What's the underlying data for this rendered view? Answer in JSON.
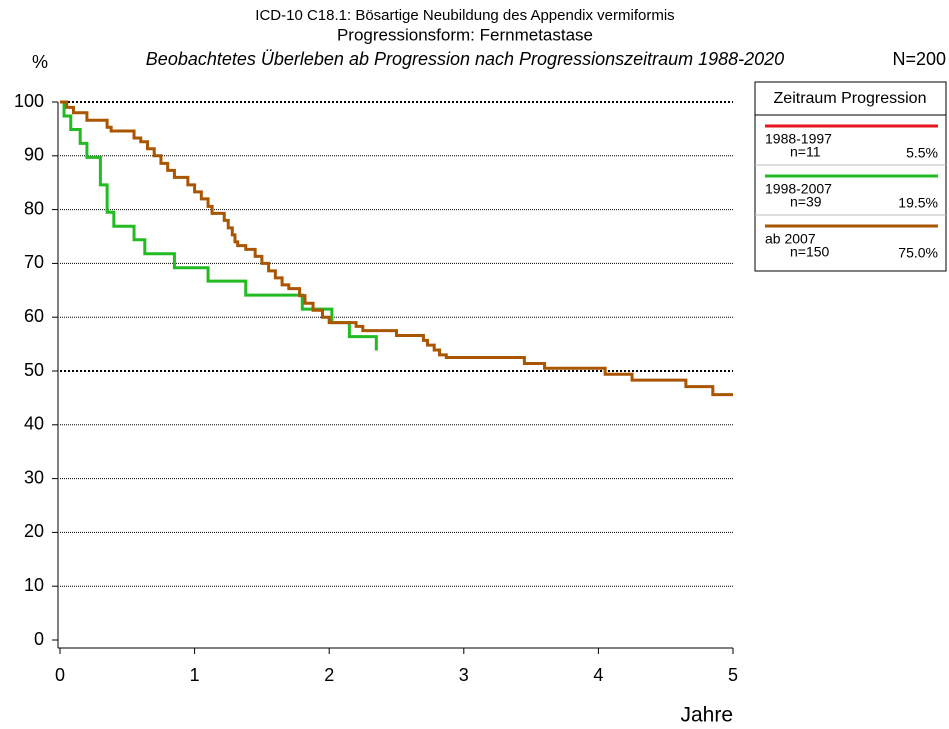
{
  "chart_data": {
    "type": "step-line",
    "title": "ICD-10 C18.1: Bösartige Neubildung des Appendix vermiformis",
    "subtitle": "Progressionsform: Fernmetastase",
    "description": "Beobachtetes Überleben ab Progression nach Progressionszeitraum 1988-2020",
    "total_label": "N=200",
    "y_label": "%",
    "x_label": "Jahre",
    "legend_title": "Zeitraum Progression",
    "xlim": [
      0,
      5
    ],
    "xticks": [
      0,
      1,
      2,
      3,
      4,
      5
    ],
    "ylim": [
      0,
      100
    ],
    "yticks": [
      0,
      10,
      20,
      30,
      40,
      50,
      60,
      70,
      80,
      90,
      100
    ],
    "grid": true,
    "bold_gridlines": [
      50,
      100
    ],
    "series": [
      {
        "name": "1988-1997",
        "color": "#e8141b",
        "n_label": "n=11",
        "share_label": "5.5%",
        "x": [],
        "values": []
      },
      {
        "name": "1998-2007",
        "color": "#22bb22",
        "n_label": "n=39",
        "share_label": "19.5%",
        "x": [
          0,
          0.03,
          0.08,
          0.15,
          0.2,
          0.3,
          0.35,
          0.4,
          0.55,
          0.63,
          0.85,
          1.1,
          1.38,
          1.8,
          2.02,
          2.15,
          2.35
        ],
        "values": [
          100,
          97.4,
          94.9,
          92.3,
          89.7,
          84.6,
          79.5,
          76.9,
          74.4,
          71.8,
          69.2,
          66.7,
          64.1,
          61.5,
          59.0,
          56.4,
          53.8
        ]
      },
      {
        "name": "ab 2007",
        "color": "#aa5500",
        "n_label": "n=150",
        "share_label": "75.0%",
        "x": [
          0,
          0.05,
          0.1,
          0.2,
          0.35,
          0.38,
          0.55,
          0.6,
          0.65,
          0.7,
          0.75,
          0.8,
          0.85,
          0.95,
          1.0,
          1.05,
          1.1,
          1.13,
          1.22,
          1.25,
          1.28,
          1.3,
          1.32,
          1.38,
          1.45,
          1.5,
          1.55,
          1.6,
          1.65,
          1.7,
          1.78,
          1.82,
          1.88,
          1.95,
          2.0,
          2.2,
          2.25,
          2.5,
          2.7,
          2.73,
          2.78,
          2.82,
          2.87,
          3.45,
          3.6,
          4.05,
          4.25,
          4.65,
          4.85,
          5.0
        ],
        "values": [
          100,
          99,
          98,
          96.6,
          95.3,
          94.6,
          93.3,
          92.6,
          91.3,
          90,
          88.6,
          87.3,
          86,
          84.6,
          83.3,
          82,
          80.6,
          79.3,
          78,
          76.6,
          75.3,
          74,
          73.3,
          72.6,
          71.3,
          70,
          68.6,
          67.3,
          66,
          65.3,
          64,
          62.6,
          61.3,
          60,
          59,
          58.3,
          57.5,
          56.6,
          55.7,
          54.8,
          53.9,
          53,
          52.5,
          51.4,
          50.5,
          49.4,
          48.3,
          47.1,
          45.6,
          45.6
        ]
      }
    ]
  }
}
